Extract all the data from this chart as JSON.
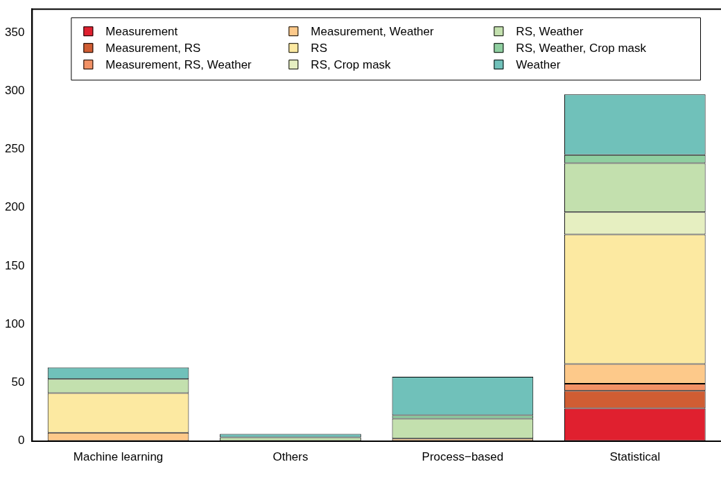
{
  "chart_data": {
    "type": "bar",
    "stacked": true,
    "categories": [
      "Machine learning",
      "Others",
      "Process−based",
      "Statistical"
    ],
    "series": [
      {
        "name": "Measurement",
        "color": "#e0202f",
        "values": [
          0,
          0,
          0,
          28
        ]
      },
      {
        "name": "Measurement, RS",
        "color": "#d05d33",
        "values": [
          0,
          0,
          0,
          15
        ]
      },
      {
        "name": "Measurement, RS, Weather",
        "color": "#f29165",
        "values": [
          0,
          0,
          0,
          6
        ]
      },
      {
        "name": "Measurement, Weather",
        "color": "#fdc98a",
        "values": [
          7,
          0,
          2,
          17
        ]
      },
      {
        "name": "RS",
        "color": "#fce9a1",
        "values": [
          34,
          0,
          0,
          111
        ]
      },
      {
        "name": "RS, Crop mask",
        "color": "#e6efc1",
        "values": [
          0,
          0,
          0,
          19
        ]
      },
      {
        "name": "RS, Weather",
        "color": "#c3e0ae",
        "values": [
          12,
          3,
          17,
          42
        ]
      },
      {
        "name": "RS, Weather, Crop mask",
        "color": "#8fcfa0",
        "values": [
          0,
          0,
          3,
          7
        ]
      },
      {
        "name": "Weather",
        "color": "#70c1ba",
        "values": [
          10,
          3,
          33,
          52
        ]
      }
    ],
    "ylim": [
      0,
      370
    ],
    "yticks": [
      0,
      50,
      100,
      150,
      200,
      250,
      300,
      350
    ],
    "grid": false,
    "legend": "top"
  }
}
